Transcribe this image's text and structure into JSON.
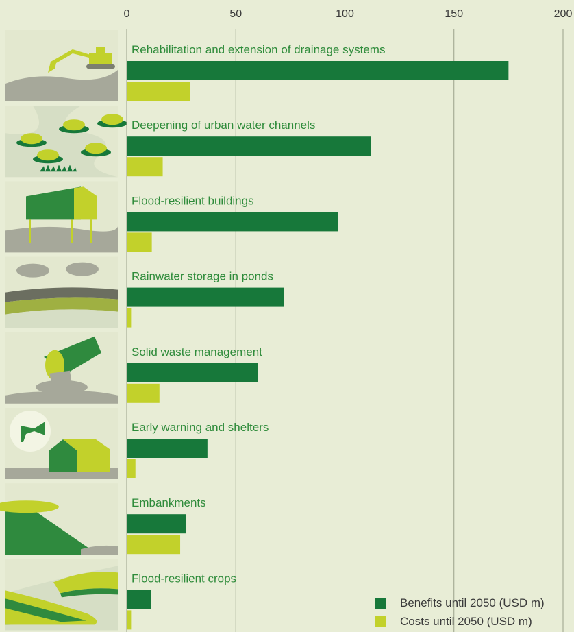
{
  "colors": {
    "background": "#e8edd6",
    "benefits": "#17783a",
    "costs": "#c2d12b",
    "grid": "#9aa18a",
    "category_text": "#2e8b3a"
  },
  "chart_data": {
    "type": "bar",
    "orientation": "horizontal",
    "xlim": [
      0,
      200
    ],
    "ticks": [
      "0",
      "50",
      "100",
      "150",
      "200"
    ],
    "tick_values": [
      0,
      50,
      100,
      150,
      200
    ],
    "categories": [
      "Rehabilitation and extension of drainage systems",
      "Deepening of urban water channels",
      "Flood-resilient buildings",
      "Rainwater storage in ponds",
      "Solid waste management",
      "Early warning and shelters",
      "Embankments",
      "Flood-resilient crops"
    ],
    "series": [
      {
        "name": "Benefits until 2050 (USD m)",
        "values": [
          175,
          112,
          97,
          72,
          60,
          37,
          27,
          11
        ]
      },
      {
        "name": "Costs until 2050 (USD m)",
        "values": [
          29,
          16.5,
          11.5,
          2,
          15,
          4,
          24.5,
          2
        ]
      }
    ],
    "grid": true,
    "legend_position": "bottom-right"
  },
  "icons": [
    "excavator-icon",
    "channel-icon",
    "raised-house-icon",
    "rain-pond-icon",
    "waste-pipe-icon",
    "siren-shelter-icon",
    "embankment-icon",
    "terrace-crops-icon"
  ]
}
